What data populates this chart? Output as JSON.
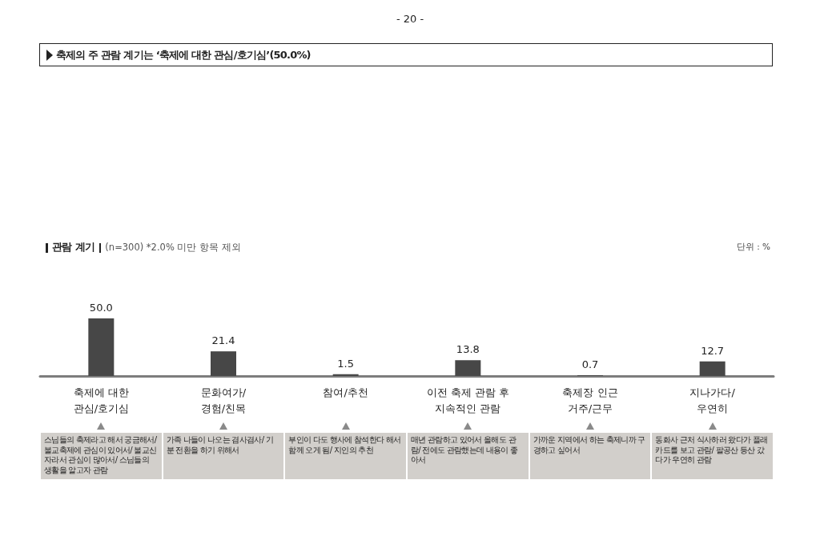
{
  "chart_data": {
    "type": "bar",
    "title": "축제의 주 관람 계기는 ‘축제에 대한 관심/호기심’(50.0%)",
    "subtitle": "관람 계기",
    "categories": [
      "축제에 대한\n관심/호기심",
      "문화여가/\n경험/친목",
      "참여/추천",
      "이전 축제 관람 후\n지속적인 관람",
      "축제장 인근\n거주/근무",
      "지나가다/\n우연히"
    ],
    "values": [
      50.0,
      21.4,
      1.5,
      13.8,
      0.7,
      12.7
    ],
    "value_labels": [
      "50.0",
      "21.4",
      "1.5",
      "13.8",
      "0.7",
      "12.7"
    ],
    "color": "#474747",
    "annotations": [
      "- 20 -",
      "(n=300) *2.0% 미만 항목 제외",
      "단위 : %",
      "스님들의 축제라고 해서 궁금해서/ 불교축제에 관심이 있어서/ 불교신자라서 관심이 많아서/ 스님들의 생활을 알고자 관람",
      "가족 나들이 나오는 겸사겸사/ 기분 전환을 하기 위해서",
      "부인이 다도 행사에 참석한다 해서 함께 오게 됨/ 지인의 추천",
      "매년 관람하고 있어서 올해도 관람/ 전에도 관람했는데 내용이 좋아서",
      "가까운 지역에서 하는 축제니까 구경하고 싶어서",
      "동화사 근처 식사하러 왔다가 플래카드를 보고 관람/ 팔공산 등산 갔다가 우연히 관람"
    ]
  }
}
